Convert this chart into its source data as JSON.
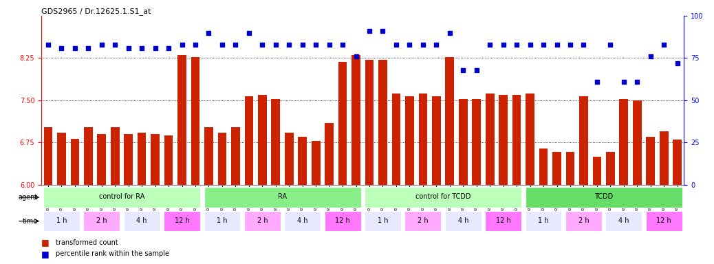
{
  "title": "GDS2965 / Dr.12625.1.S1_at",
  "samples": [
    "GSM228874",
    "GSM228875",
    "GSM228876",
    "GSM228880",
    "GSM228881",
    "GSM228882",
    "GSM228886",
    "GSM228887",
    "GSM228888",
    "GSM228892",
    "GSM228893",
    "GSM228894",
    "GSM228871",
    "GSM228872",
    "GSM228873",
    "GSM228877",
    "GSM228878",
    "GSM228879",
    "GSM228883",
    "GSM228884",
    "GSM228885",
    "GSM228889",
    "GSM228890",
    "GSM228891",
    "GSM228898",
    "GSM228899",
    "GSM228900",
    "GSM228905",
    "GSM228906",
    "GSM228907",
    "GSM228911",
    "GSM228912",
    "GSM228913",
    "GSM228917",
    "GSM228918",
    "GSM228919",
    "GSM228895",
    "GSM228896",
    "GSM228897",
    "GSM228901",
    "GSM228903",
    "GSM228904",
    "GSM228908",
    "GSM228909",
    "GSM228910",
    "GSM228914",
    "GSM228915",
    "GSM228916"
  ],
  "bar_values": [
    7.02,
    6.92,
    6.82,
    7.02,
    6.9,
    7.02,
    6.9,
    6.92,
    6.9,
    6.88,
    8.3,
    8.27,
    7.02,
    6.92,
    7.02,
    7.57,
    7.6,
    7.52,
    6.92,
    6.85,
    6.78,
    7.1,
    8.18,
    8.3,
    8.22,
    8.22,
    7.62,
    7.57,
    7.62,
    7.57,
    8.27,
    7.52,
    7.52,
    7.62,
    7.6,
    7.6,
    7.62,
    6.65,
    6.58,
    6.58,
    7.57,
    6.5,
    6.58,
    7.52,
    7.5,
    6.85,
    6.95,
    6.8
  ],
  "blue_values": [
    83,
    81,
    81,
    81,
    83,
    83,
    81,
    81,
    81,
    81,
    83,
    83,
    90,
    83,
    83,
    90,
    83,
    83,
    83,
    83,
    83,
    83,
    83,
    76,
    91,
    91,
    83,
    83,
    83,
    83,
    90,
    68,
    68,
    83,
    83,
    83,
    83,
    83,
    83,
    83,
    83,
    61,
    83,
    61,
    61,
    76,
    83,
    72
  ],
  "ylim_left": [
    6.0,
    9.0
  ],
  "ylim_right": [
    0,
    100
  ],
  "yticks_left": [
    6.0,
    6.75,
    7.5,
    8.25
  ],
  "yticks_right": [
    0,
    25,
    50,
    75,
    100
  ],
  "bar_color": "#cc2200",
  "dot_color": "#0000cc",
  "agent_groups": [
    {
      "label": "control for RA",
      "start": 0,
      "end": 12,
      "color": "#bbffbb"
    },
    {
      "label": "RA",
      "start": 12,
      "end": 24,
      "color": "#88ee88"
    },
    {
      "label": "control for TCDD",
      "start": 24,
      "end": 36,
      "color": "#bbffbb"
    },
    {
      "label": "TCDD",
      "start": 36,
      "end": 48,
      "color": "#66dd66"
    }
  ],
  "time_groups": [
    {
      "label": "1 h",
      "start": 0,
      "end": 3,
      "color": "#e8e8ff"
    },
    {
      "label": "2 h",
      "start": 3,
      "end": 6,
      "color": "#ffaaff"
    },
    {
      "label": "4 h",
      "start": 6,
      "end": 9,
      "color": "#e8e8ff"
    },
    {
      "label": "12 h",
      "start": 9,
      "end": 12,
      "color": "#ff77ff"
    },
    {
      "label": "1 h",
      "start": 12,
      "end": 15,
      "color": "#e8e8ff"
    },
    {
      "label": "2 h",
      "start": 15,
      "end": 18,
      "color": "#ffaaff"
    },
    {
      "label": "4 h",
      "start": 18,
      "end": 21,
      "color": "#e8e8ff"
    },
    {
      "label": "12 h",
      "start": 21,
      "end": 24,
      "color": "#ff77ff"
    },
    {
      "label": "1 h",
      "start": 24,
      "end": 27,
      "color": "#e8e8ff"
    },
    {
      "label": "2 h",
      "start": 27,
      "end": 30,
      "color": "#ffaaff"
    },
    {
      "label": "4 h",
      "start": 30,
      "end": 33,
      "color": "#e8e8ff"
    },
    {
      "label": "12 h",
      "start": 33,
      "end": 36,
      "color": "#ff77ff"
    },
    {
      "label": "1 h",
      "start": 36,
      "end": 39,
      "color": "#e8e8ff"
    },
    {
      "label": "2 h",
      "start": 39,
      "end": 42,
      "color": "#ffaaff"
    },
    {
      "label": "4 h",
      "start": 42,
      "end": 45,
      "color": "#e8e8ff"
    },
    {
      "label": "12 h",
      "start": 45,
      "end": 48,
      "color": "#ff77ff"
    }
  ],
  "legend": [
    {
      "label": "transformed count",
      "color": "#cc2200"
    },
    {
      "label": "percentile rank within the sample",
      "color": "#0000cc"
    }
  ],
  "bg_color": "#ffffff",
  "plot_bg": "#ffffff"
}
